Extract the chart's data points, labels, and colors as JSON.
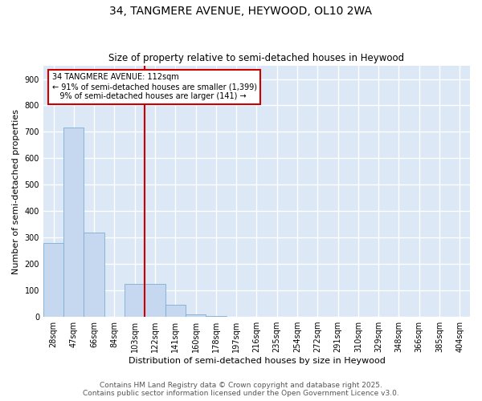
{
  "title_line1": "34, TANGMERE AVENUE, HEYWOOD, OL10 2WA",
  "title_line2": "Size of property relative to semi-detached houses in Heywood",
  "xlabel": "Distribution of semi-detached houses by size in Heywood",
  "ylabel": "Number of semi-detached properties",
  "categories": [
    "28sqm",
    "47sqm",
    "66sqm",
    "84sqm",
    "103sqm",
    "122sqm",
    "141sqm",
    "160sqm",
    "178sqm",
    "197sqm",
    "216sqm",
    "235sqm",
    "254sqm",
    "272sqm",
    "291sqm",
    "310sqm",
    "329sqm",
    "348sqm",
    "366sqm",
    "385sqm",
    "404sqm"
  ],
  "values": [
    280,
    715,
    320,
    0,
    125,
    125,
    45,
    8,
    2,
    0,
    0,
    0,
    0,
    0,
    0,
    0,
    0,
    0,
    0,
    0,
    0
  ],
  "bar_color": "#c5d8f0",
  "bar_edge_color": "#7aadd4",
  "vline_color": "#cc0000",
  "annotation_text": "34 TANGMERE AVENUE: 112sqm\n← 91% of semi-detached houses are smaller (1,399)\n   9% of semi-detached houses are larger (141) →",
  "annotation_box_color": "#cc0000",
  "ylim": [
    0,
    950
  ],
  "yticks": [
    0,
    100,
    200,
    300,
    400,
    500,
    600,
    700,
    800,
    900
  ],
  "background_color": "#dce8f5",
  "grid_color": "#ffffff",
  "footer_line1": "Contains HM Land Registry data © Crown copyright and database right 2025.",
  "footer_line2": "Contains public sector information licensed under the Open Government Licence v3.0.",
  "title_fontsize": 10,
  "subtitle_fontsize": 8.5,
  "axis_label_fontsize": 8,
  "tick_fontsize": 7,
  "footer_fontsize": 6.5,
  "ann_fontsize": 7
}
